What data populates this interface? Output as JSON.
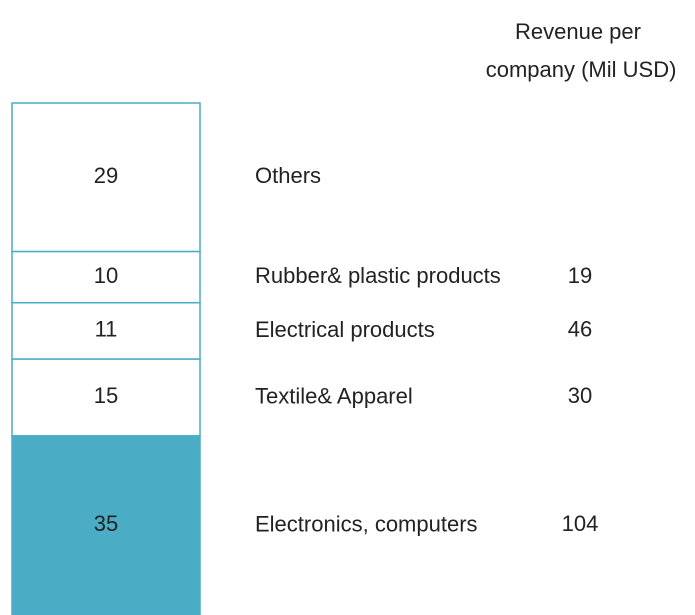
{
  "chart_data": {
    "type": "stacked_bar",
    "categories": [
      "Electronics, computers",
      "Textile& Apparel",
      "Electrical products",
      "Rubber& plastic products",
      "Others"
    ],
    "values": [
      35,
      15,
      11,
      10,
      29
    ],
    "colors": [
      "#4bacc6",
      "#ffffff",
      "#ffffff",
      "#ffffff",
      "#ffffff"
    ],
    "edge_color": "#4bacc6",
    "ylim": [
      0,
      100
    ],
    "revenue": {
      "title": "Revenue per company (Mil USD)",
      "values": [
        104,
        30,
        46,
        19,
        null
      ]
    }
  }
}
